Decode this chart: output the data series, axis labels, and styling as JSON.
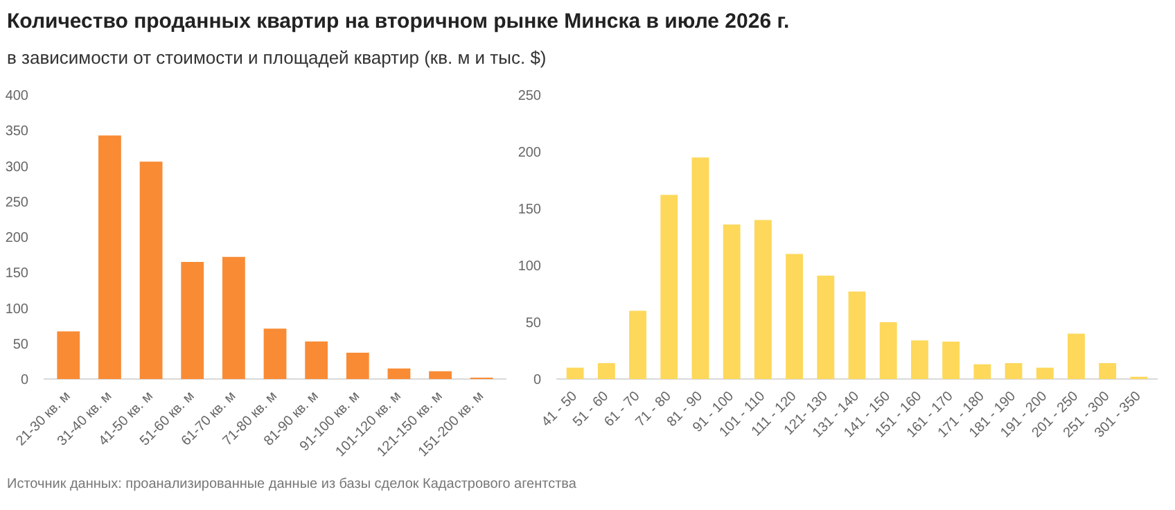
{
  "chart_data": [
    {
      "type": "bar",
      "title": "Количество проданных квартир на вторичном рынке Минска в июле 2026 г.",
      "subtitle": "в зависимости от стоимости и площадей квартир (кв. м и тыс. $)",
      "annotations": [
        "Источник данных: проанализированные данные из базы сделок Кадастрового агентства"
      ],
      "categories": [
        "21-30 кв. м",
        "31-40 кв. м",
        "41-50 кв. м",
        "51-60 кв. м",
        "61-70 кв. м",
        "71-80 кв. м",
        "81-90 кв. м",
        "91-100 кв. м",
        "101-120 кв. м",
        "121-150 кв. м",
        "151-200 кв. м"
      ],
      "values": [
        67,
        343,
        306,
        165,
        172,
        71,
        53,
        37,
        15,
        11,
        2
      ],
      "color": "#f98b35",
      "ylim": [
        0,
        400
      ],
      "yticks": [
        0,
        50,
        100,
        150,
        200,
        250,
        300,
        350,
        400
      ],
      "grid": false
    },
    {
      "type": "bar",
      "categories": [
        "41 - 50",
        "51 - 60",
        "61 - 70",
        "71 - 80",
        "81 - 90",
        "91 - 100",
        "101 - 110",
        "111 - 120",
        "121- 130",
        "131 - 140",
        "141 - 150",
        "151 - 160",
        "161 - 170",
        "171 - 180",
        "181 - 190",
        "191 - 200",
        "201 - 250",
        "251 - 300",
        "301 - 350"
      ],
      "values": [
        10,
        14,
        60,
        162,
        195,
        136,
        140,
        110,
        91,
        77,
        50,
        34,
        33,
        13,
        14,
        10,
        40,
        14,
        2
      ],
      "color": "#fdd85a",
      "ylim": [
        0,
        250
      ],
      "yticks": [
        0,
        50,
        100,
        150,
        200,
        250
      ],
      "grid": false
    }
  ]
}
